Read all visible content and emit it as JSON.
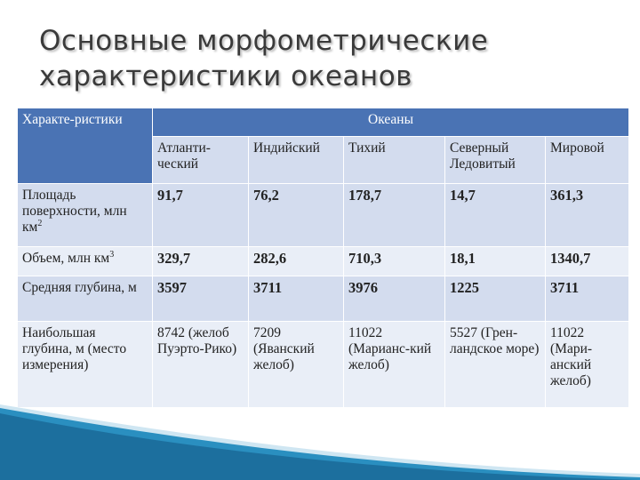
{
  "title": {
    "line1": "Основные морфометрические",
    "line2": "характеристики океанов"
  },
  "table": {
    "corner_header": "Характе-ристики",
    "group_header": "Океаны",
    "oceans": [
      "Атланти-ческий",
      "Индийский",
      "Тихий",
      "Северный Ледовитый",
      "Мировой"
    ],
    "rows": [
      {
        "label": "Площадь поверхности, млн км",
        "label_sup": "2",
        "values": [
          "91,7",
          "76,2",
          "178,7",
          "14,7",
          "361,3"
        ]
      },
      {
        "label": "Объем, млн км",
        "label_sup": "3",
        "values": [
          "329,7",
          "282,6",
          "710,3",
          "18,1",
          "1340,7"
        ]
      },
      {
        "label": "Средняя глубина, м",
        "values": [
          "3597",
          "3711",
          "3976",
          "1225",
          "3711"
        ]
      },
      {
        "label": "Наибольшая глубина, м (место измерения)",
        "values": [
          "8742 (желоб Пуэрто-Рико)",
          "7209 (Яванский желоб)",
          "11022 (Марианс-кий желоб)",
          "5527 (Грен-ландское море)",
          "11022 (Мари-анский желоб)"
        ]
      }
    ]
  },
  "colors": {
    "header_dark": "#4a73b4",
    "header_light": "#d3dcee",
    "row_a": "#d3dcee",
    "row_b": "#e9eef7",
    "accent_deco": "#2a8fc0"
  }
}
